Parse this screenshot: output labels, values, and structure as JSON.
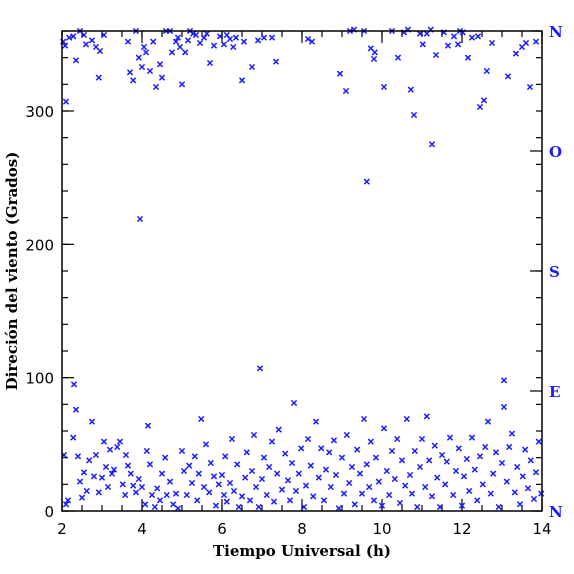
{
  "chart_data": {
    "type": "scatter",
    "title": "",
    "xlabel": "Tiempo Universal (h)",
    "ylabel": "Direción del viento (Grados)",
    "xlim": [
      2,
      14
    ],
    "ylim": [
      0,
      360
    ],
    "x_ticks": [
      2,
      4,
      6,
      8,
      10,
      12,
      14
    ],
    "y_ticks": [
      0,
      100,
      200,
      300
    ],
    "x_minor_step": 0.5,
    "y_minor_step": 20,
    "grid": false,
    "marker": "x",
    "colors": {
      "points": "#1a1aff",
      "compass": "#1a1aff",
      "axes": "#000000"
    },
    "right_axis": {
      "labels": [
        {
          "text": "N",
          "value": 360
        },
        {
          "text": "O",
          "value": 270
        },
        {
          "text": "S",
          "value": 180
        },
        {
          "text": "E",
          "value": 90
        },
        {
          "text": "N",
          "value": 0
        }
      ],
      "minor_step": 20
    },
    "series": [
      {
        "values": [
          [
            2.03,
            352
          ],
          [
            2.08,
            349
          ],
          [
            2.1,
            307
          ],
          [
            2.18,
            355
          ],
          [
            2.28,
            356
          ],
          [
            2.35,
            338
          ],
          [
            2.45,
            360
          ],
          [
            2.55,
            357
          ],
          [
            2.6,
            350
          ],
          [
            2.75,
            353
          ],
          [
            2.85,
            348
          ],
          [
            2.92,
            325
          ],
          [
            2.95,
            345
          ],
          [
            3.05,
            357
          ],
          [
            3.65,
            352
          ],
          [
            3.7,
            329
          ],
          [
            3.78,
            323
          ],
          [
            3.85,
            360
          ],
          [
            3.92,
            340
          ],
          [
            4.0,
            333
          ],
          [
            4.05,
            348
          ],
          [
            4.1,
            344
          ],
          [
            4.2,
            330
          ],
          [
            4.28,
            352
          ],
          [
            4.35,
            318
          ],
          [
            4.45,
            335
          ],
          [
            4.5,
            325
          ],
          [
            4.6,
            360
          ],
          [
            4.7,
            360
          ],
          [
            4.75,
            344
          ],
          [
            4.85,
            352
          ],
          [
            4.9,
            355
          ],
          [
            4.95,
            348
          ],
          [
            5.0,
            320
          ],
          [
            5.08,
            344
          ],
          [
            5.15,
            353
          ],
          [
            5.2,
            360
          ],
          [
            5.28,
            358
          ],
          [
            5.35,
            357
          ],
          [
            5.45,
            351
          ],
          [
            5.55,
            355
          ],
          [
            5.62,
            358
          ],
          [
            5.7,
            336
          ],
          [
            5.8,
            349
          ],
          [
            5.95,
            356
          ],
          [
            6.05,
            350
          ],
          [
            6.12,
            357
          ],
          [
            6.2,
            354
          ],
          [
            6.28,
            348
          ],
          [
            6.35,
            355
          ],
          [
            6.5,
            323
          ],
          [
            6.55,
            352
          ],
          [
            6.75,
            333
          ],
          [
            6.9,
            353
          ],
          [
            7.05,
            355
          ],
          [
            7.25,
            355
          ],
          [
            7.35,
            337
          ],
          [
            8.15,
            354
          ],
          [
            8.25,
            352
          ],
          [
            8.95,
            328
          ],
          [
            9.1,
            315
          ],
          [
            9.2,
            360
          ],
          [
            9.3,
            361
          ],
          [
            9.55,
            360
          ],
          [
            9.72,
            347
          ],
          [
            9.8,
            339
          ],
          [
            9.82,
            344
          ],
          [
            10.05,
            318
          ],
          [
            10.25,
            360
          ],
          [
            10.4,
            340
          ],
          [
            10.55,
            359
          ],
          [
            10.65,
            361
          ],
          [
            10.72,
            316
          ],
          [
            10.8,
            297
          ],
          [
            10.95,
            358
          ],
          [
            11.02,
            350
          ],
          [
            11.12,
            358
          ],
          [
            11.22,
            361
          ],
          [
            11.25,
            275
          ],
          [
            11.35,
            342
          ],
          [
            11.55,
            359
          ],
          [
            11.65,
            349
          ],
          [
            11.8,
            356
          ],
          [
            11.9,
            350
          ],
          [
            11.95,
            360
          ],
          [
            12.02,
            359
          ],
          [
            12.15,
            340
          ],
          [
            12.25,
            355
          ],
          [
            12.4,
            356
          ],
          [
            12.45,
            303
          ],
          [
            12.55,
            308
          ],
          [
            12.62,
            330
          ],
          [
            12.75,
            351
          ],
          [
            13.15,
            326
          ],
          [
            13.35,
            343
          ],
          [
            13.5,
            348
          ],
          [
            13.6,
            351
          ],
          [
            13.7,
            318
          ],
          [
            13.85,
            352
          ],
          [
            3.95,
            219
          ],
          [
            6.95,
            107
          ],
          [
            9.62,
            247
          ],
          [
            2.3,
            95
          ],
          [
            13.05,
            98
          ],
          [
            2.05,
            42
          ],
          [
            2.1,
            5
          ],
          [
            2.15,
            8
          ],
          [
            2.28,
            55
          ],
          [
            2.35,
            76
          ],
          [
            2.4,
            41
          ],
          [
            2.45,
            22
          ],
          [
            2.5,
            10
          ],
          [
            2.55,
            29
          ],
          [
            2.62,
            15
          ],
          [
            2.68,
            38
          ],
          [
            2.75,
            67
          ],
          [
            2.8,
            26
          ],
          [
            2.85,
            42
          ],
          [
            2.92,
            14
          ],
          [
            3.0,
            25
          ],
          [
            3.05,
            52
          ],
          [
            3.1,
            33
          ],
          [
            3.15,
            18
          ],
          [
            3.2,
            46
          ],
          [
            3.25,
            28
          ],
          [
            3.3,
            31
          ],
          [
            3.38,
            48
          ],
          [
            3.45,
            52
          ],
          [
            3.52,
            20
          ],
          [
            3.58,
            12
          ],
          [
            3.6,
            42
          ],
          [
            3.65,
            34
          ],
          [
            3.72,
            28
          ],
          [
            3.78,
            19
          ],
          [
            3.85,
            14
          ],
          [
            3.92,
            24
          ],
          [
            4.0,
            18
          ],
          [
            4.08,
            5
          ],
          [
            4.12,
            45
          ],
          [
            4.15,
            64
          ],
          [
            4.2,
            35
          ],
          [
            4.25,
            12
          ],
          [
            4.32,
            3
          ],
          [
            4.38,
            17
          ],
          [
            4.45,
            8
          ],
          [
            4.5,
            28
          ],
          [
            4.58,
            40
          ],
          [
            4.62,
            12
          ],
          [
            4.7,
            22
          ],
          [
            4.78,
            5
          ],
          [
            4.85,
            13
          ],
          [
            4.9,
            2
          ],
          [
            5.0,
            45
          ],
          [
            5.05,
            30
          ],
          [
            5.12,
            12
          ],
          [
            5.18,
            34
          ],
          [
            5.25,
            21
          ],
          [
            5.32,
            41
          ],
          [
            5.38,
            8
          ],
          [
            5.42,
            28
          ],
          [
            5.48,
            69
          ],
          [
            5.55,
            18
          ],
          [
            5.6,
            50
          ],
          [
            5.68,
            14
          ],
          [
            5.72,
            36
          ],
          [
            5.8,
            26
          ],
          [
            5.85,
            4
          ],
          [
            5.92,
            20
          ],
          [
            6.0,
            27
          ],
          [
            6.05,
            12
          ],
          [
            6.08,
            41
          ],
          [
            6.12,
            7
          ],
          [
            6.2,
            21
          ],
          [
            6.25,
            54
          ],
          [
            6.3,
            15
          ],
          [
            6.38,
            35
          ],
          [
            6.42,
            3
          ],
          [
            6.5,
            11
          ],
          [
            6.58,
            25
          ],
          [
            6.62,
            44
          ],
          [
            6.7,
            8
          ],
          [
            6.75,
            30
          ],
          [
            6.8,
            57
          ],
          [
            6.85,
            18
          ],
          [
            6.92,
            3
          ],
          [
            7.0,
            24
          ],
          [
            7.05,
            40
          ],
          [
            7.12,
            12
          ],
          [
            7.18,
            33
          ],
          [
            7.25,
            52
          ],
          [
            7.3,
            7
          ],
          [
            7.38,
            28
          ],
          [
            7.42,
            61
          ],
          [
            7.5,
            16
          ],
          [
            7.58,
            43
          ],
          [
            7.65,
            23
          ],
          [
            7.7,
            8
          ],
          [
            7.75,
            36
          ],
          [
            7.8,
            81
          ],
          [
            7.85,
            15
          ],
          [
            7.92,
            28
          ],
          [
            7.98,
            47
          ],
          [
            8.05,
            3
          ],
          [
            8.1,
            19
          ],
          [
            8.15,
            54
          ],
          [
            8.22,
            34
          ],
          [
            8.28,
            11
          ],
          [
            8.35,
            67
          ],
          [
            8.42,
            25
          ],
          [
            8.48,
            47
          ],
          [
            8.55,
            8
          ],
          [
            8.6,
            31
          ],
          [
            8.68,
            44
          ],
          [
            8.72,
            18
          ],
          [
            8.8,
            53
          ],
          [
            8.85,
            27
          ],
          [
            8.92,
            2
          ],
          [
            9.0,
            40
          ],
          [
            9.05,
            13
          ],
          [
            9.12,
            57
          ],
          [
            9.18,
            21
          ],
          [
            9.25,
            33
          ],
          [
            9.32,
            5
          ],
          [
            9.38,
            46
          ],
          [
            9.45,
            28
          ],
          [
            9.5,
            13
          ],
          [
            9.55,
            69
          ],
          [
            9.62,
            35
          ],
          [
            9.68,
            18
          ],
          [
            9.72,
            52
          ],
          [
            9.8,
            8
          ],
          [
            9.85,
            40
          ],
          [
            9.92,
            22
          ],
          [
            10.0,
            4
          ],
          [
            10.05,
            62
          ],
          [
            10.12,
            30
          ],
          [
            10.18,
            12
          ],
          [
            10.25,
            45
          ],
          [
            10.32,
            24
          ],
          [
            10.38,
            54
          ],
          [
            10.45,
            6
          ],
          [
            10.5,
            38
          ],
          [
            10.58,
            19
          ],
          [
            10.62,
            69
          ],
          [
            10.7,
            27
          ],
          [
            10.75,
            13
          ],
          [
            10.82,
            45
          ],
          [
            10.88,
            3
          ],
          [
            10.95,
            33
          ],
          [
            11.0,
            54
          ],
          [
            11.08,
            18
          ],
          [
            11.12,
            71
          ],
          [
            11.18,
            38
          ],
          [
            11.25,
            11
          ],
          [
            11.32,
            49
          ],
          [
            11.38,
            25
          ],
          [
            11.45,
            3
          ],
          [
            11.5,
            42
          ],
          [
            11.58,
            20
          ],
          [
            11.62,
            37
          ],
          [
            11.7,
            55
          ],
          [
            11.78,
            12
          ],
          [
            11.85,
            30
          ],
          [
            11.92,
            47
          ],
          [
            12.0,
            4
          ],
          [
            12.05,
            26
          ],
          [
            12.12,
            39
          ],
          [
            12.18,
            15
          ],
          [
            12.25,
            55
          ],
          [
            12.32,
            31
          ],
          [
            12.38,
            8
          ],
          [
            12.45,
            41
          ],
          [
            12.52,
            20
          ],
          [
            12.58,
            48
          ],
          [
            12.65,
            67
          ],
          [
            12.72,
            13
          ],
          [
            12.78,
            28
          ],
          [
            12.85,
            44
          ],
          [
            12.92,
            3
          ],
          [
            13.0,
            36
          ],
          [
            13.05,
            78
          ],
          [
            13.12,
            22
          ],
          [
            13.18,
            48
          ],
          [
            13.25,
            58
          ],
          [
            13.32,
            14
          ],
          [
            13.38,
            33
          ],
          [
            13.45,
            5
          ],
          [
            13.52,
            26
          ],
          [
            13.58,
            46
          ],
          [
            13.65,
            17
          ],
          [
            13.72,
            38
          ],
          [
            13.8,
            9
          ],
          [
            13.85,
            29
          ],
          [
            13.92,
            52
          ],
          [
            13.98,
            13
          ]
        ]
      }
    ]
  }
}
